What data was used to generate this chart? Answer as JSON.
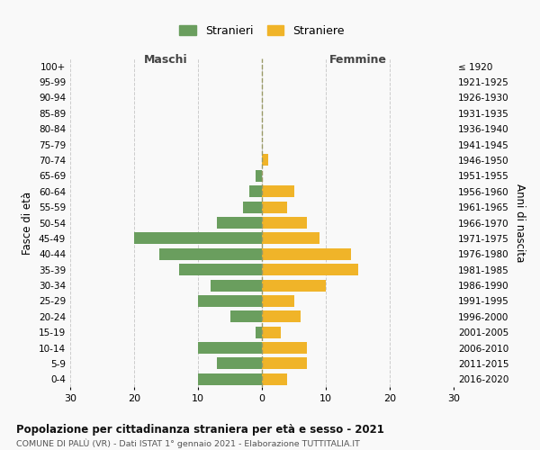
{
  "age_groups": [
    "100+",
    "95-99",
    "90-94",
    "85-89",
    "80-84",
    "75-79",
    "70-74",
    "65-69",
    "60-64",
    "55-59",
    "50-54",
    "45-49",
    "40-44",
    "35-39",
    "30-34",
    "25-29",
    "20-24",
    "15-19",
    "10-14",
    "5-9",
    "0-4"
  ],
  "birth_years": [
    "≤ 1920",
    "1921-1925",
    "1926-1930",
    "1931-1935",
    "1936-1940",
    "1941-1945",
    "1946-1950",
    "1951-1955",
    "1956-1960",
    "1961-1965",
    "1966-1970",
    "1971-1975",
    "1976-1980",
    "1981-1985",
    "1986-1990",
    "1991-1995",
    "1996-2000",
    "2001-2005",
    "2006-2010",
    "2011-2015",
    "2016-2020"
  ],
  "males": [
    0,
    0,
    0,
    0,
    0,
    0,
    0,
    1,
    2,
    3,
    7,
    20,
    16,
    13,
    8,
    10,
    5,
    1,
    10,
    7,
    10
  ],
  "females": [
    0,
    0,
    0,
    0,
    0,
    0,
    1,
    0,
    5,
    4,
    7,
    9,
    14,
    15,
    10,
    5,
    6,
    3,
    7,
    7,
    4
  ],
  "male_color": "#6a9e5e",
  "female_color": "#f0b429",
  "background_color": "#f9f9f9",
  "grid_color": "#cccccc",
  "title": "Popolazione per cittadinanza straniera per età e sesso - 2021",
  "subtitle": "COMUNE DI PALÙ (VR) - Dati ISTAT 1° gennaio 2021 - Elaborazione TUTTITALIA.IT",
  "ylabel_left": "Fasce di età",
  "ylabel_right": "Anni di nascita",
  "xlabel_left": "Maschi",
  "xlabel_top_right": "Femmine",
  "legend_male": "Stranieri",
  "legend_female": "Straniere",
  "xlim": 30,
  "dashed_line_color": "#999966"
}
